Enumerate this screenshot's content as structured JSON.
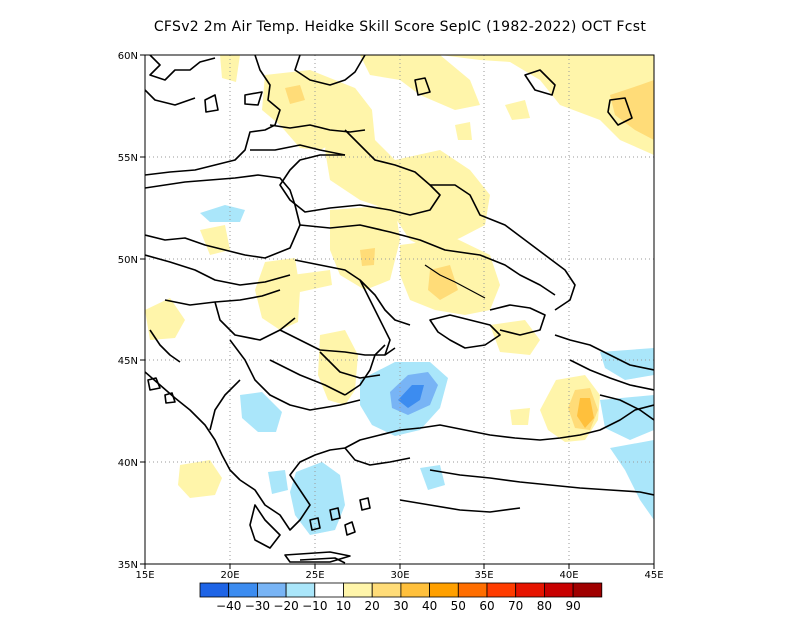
{
  "title": "CFSv2  2m Air Temp. Heidke Skill Score SepIC (1982-2022) OCT Fcst",
  "map": {
    "lat_labels": [
      "60N",
      "55N",
      "50N",
      "45N",
      "40N",
      "35N"
    ],
    "lon_labels": [
      "15E",
      "20E",
      "25E",
      "30E",
      "35E",
      "40E",
      "45E"
    ],
    "lat_range": [
      35,
      60
    ],
    "lon_range": [
      15,
      45
    ],
    "grid": "dotted",
    "region": "Eastern Europe / Black Sea"
  },
  "colorbar": {
    "colors": [
      "#1e64e6",
      "#3c8cf0",
      "#78b4f5",
      "#aae6fa",
      "#ffffff",
      "#fff5aa",
      "#ffdc78",
      "#ffc03c",
      "#ffa000",
      "#ff6e00",
      "#ff3c00",
      "#e61400",
      "#c80000",
      "#a00000"
    ],
    "labels": [
      "-40",
      "-30",
      "-20",
      "-10",
      "10",
      "20",
      "30",
      "40",
      "50",
      "60",
      "70",
      "80",
      "90"
    ]
  },
  "colors": {
    "pale_yellow": "#fff5aa",
    "yellow": "#ffdc78",
    "orange": "#ffc03c",
    "cyan": "#aae6fa",
    "light_blue": "#78b4f5",
    "blue": "#3c8cf0"
  }
}
